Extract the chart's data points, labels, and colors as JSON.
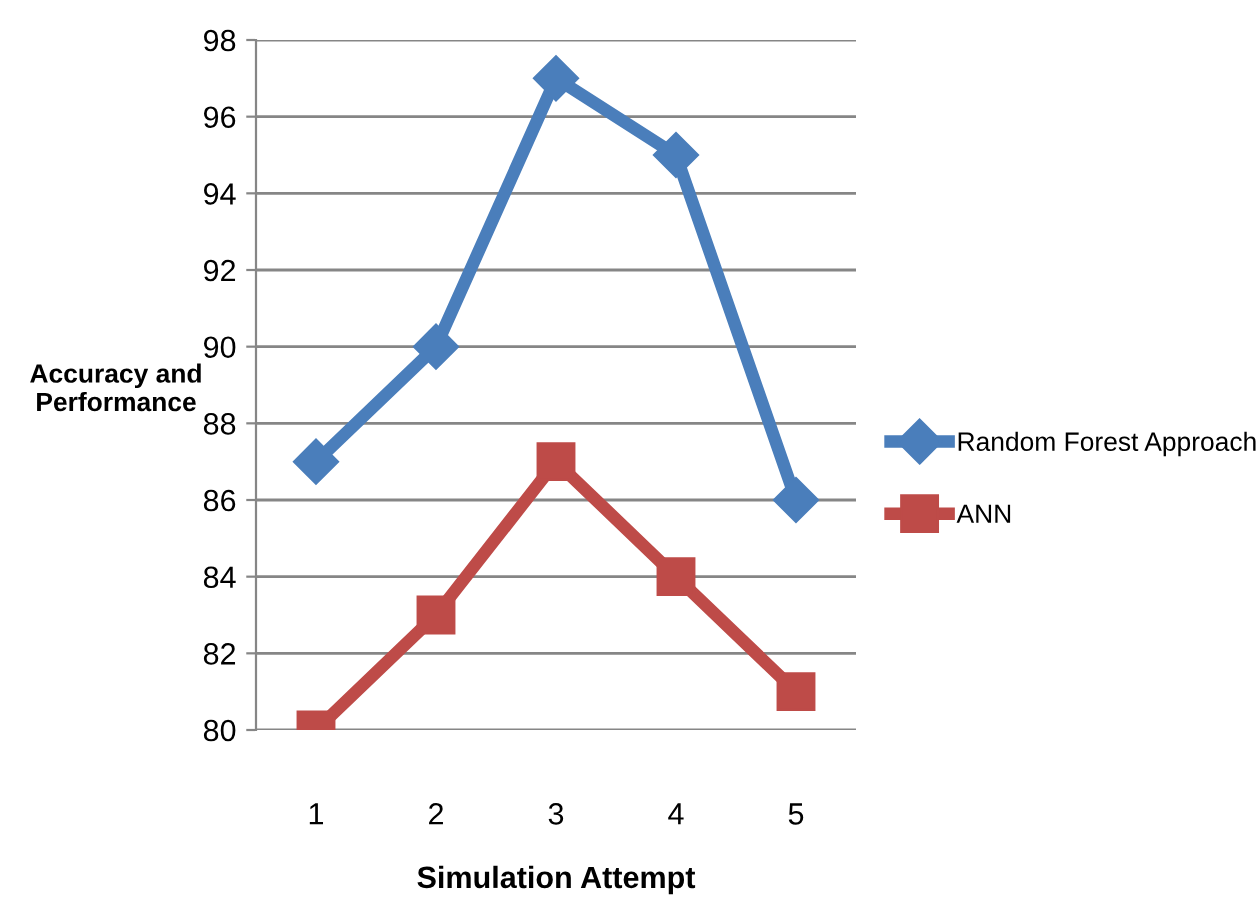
{
  "chart_data": {
    "type": "line",
    "xlabel": "Simulation Attempt",
    "ylabel": "Accuracy and\nPerformance",
    "categories": [
      "1",
      "2",
      "3",
      "4",
      "5"
    ],
    "series": [
      {
        "name": "Random Forest Approach",
        "color": "#4a7ebb",
        "marker": "diamond",
        "values": [
          87,
          90,
          97,
          95,
          86
        ]
      },
      {
        "name": "ANN",
        "color": "#be4b48",
        "marker": "square",
        "values": [
          80,
          83,
          87,
          84,
          81
        ]
      }
    ],
    "ylim": [
      80,
      98
    ],
    "yticks": [
      80,
      82,
      84,
      86,
      88,
      90,
      92,
      94,
      96,
      98
    ],
    "grid": "y",
    "legend": "right",
    "line_style": "solid"
  }
}
